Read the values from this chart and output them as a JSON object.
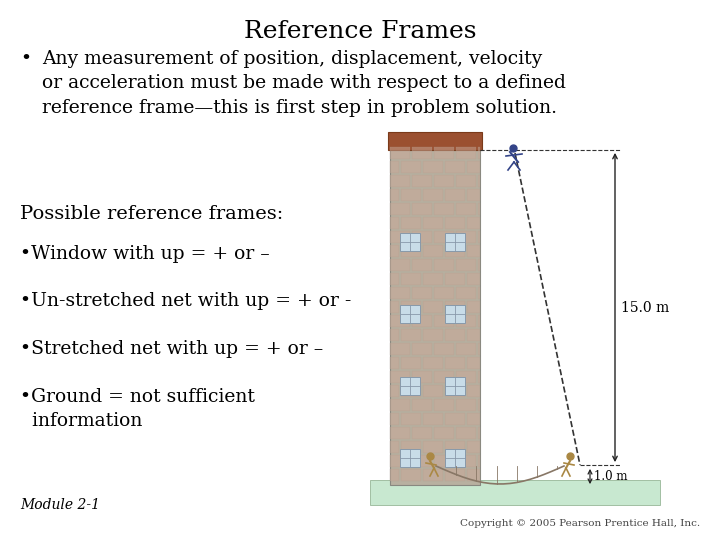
{
  "title": "Reference Frames",
  "title_fontsize": 18,
  "title_font": "serif",
  "background_color": "#ffffff",
  "text_color": "#000000",
  "bullet1_prefix": "•",
  "bullet1": "Any measurement of position, displacement, velocity\nor acceleration must be made with respect to a defined\nreference frame—this is first step in problem solution.",
  "bullet1_fontsize": 13.5,
  "possible_label": "Possible reference frames:",
  "possible_fontsize": 14,
  "bullets": [
    "•Window with up = + or –",
    "•Un-stretched net with up = + or -",
    "•Stretched net with up = + or –",
    "•Ground = not sufficient\n  information"
  ],
  "bullet_fontsize": 13.5,
  "module_label": "Module 2-1",
  "module_fontsize": 10,
  "copyright_label": "Copyright © 2005 Pearson Prentice Hall, Inc.",
  "copyright_fontsize": 7.5,
  "building_color": "#b8b0a0",
  "window_color": "#c8dce8",
  "roof_color": "#9b5030",
  "ground_color": "#c8e8d0",
  "arrow_color": "#222222",
  "dim_15m": "15.0 m",
  "dim_1m": "1.0 m"
}
